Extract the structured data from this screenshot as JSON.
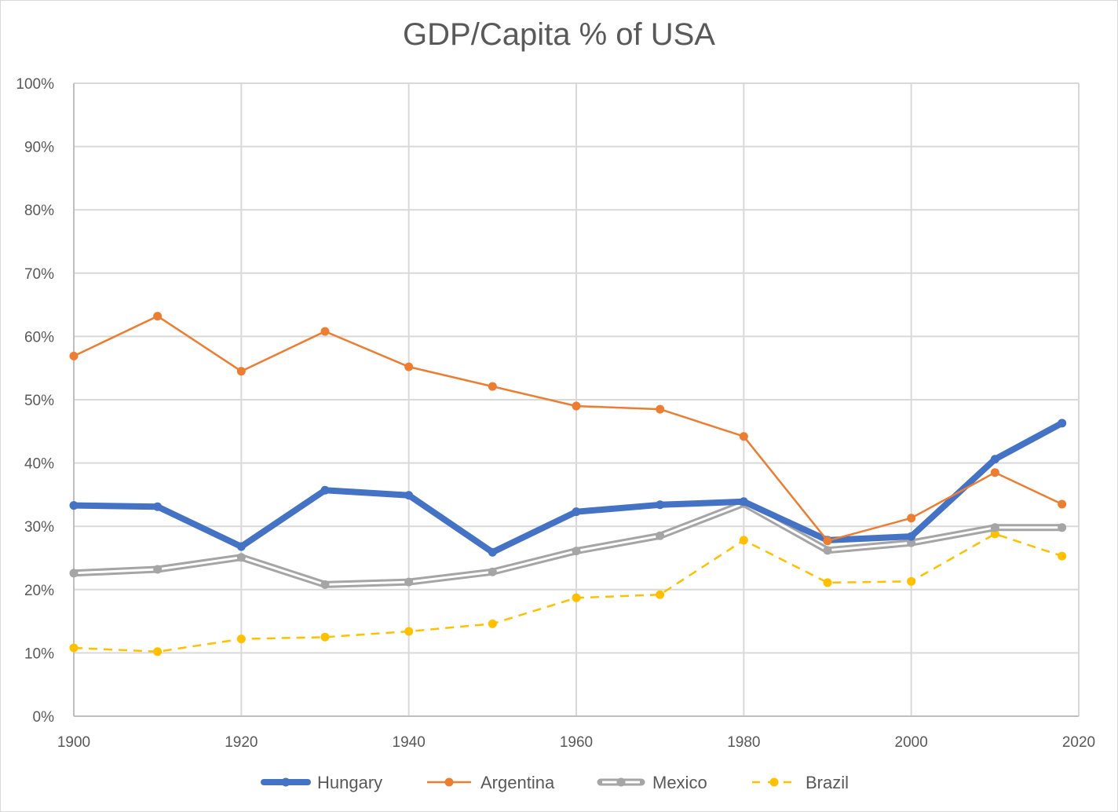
{
  "chart_data": {
    "type": "line",
    "title": "GDP/Capita % of USA",
    "xlabel": "",
    "ylabel": "",
    "xlim": [
      1900,
      2020
    ],
    "ylim": [
      0,
      100
    ],
    "x_ticks": [
      "1900",
      "1920",
      "1940",
      "1960",
      "1980",
      "2000",
      "2020"
    ],
    "x_tick_values": [
      1900,
      1920,
      1940,
      1960,
      1980,
      2000,
      2020
    ],
    "y_ticks": [
      "0%",
      "10%",
      "20%",
      "30%",
      "40%",
      "50%",
      "60%",
      "70%",
      "80%",
      "90%",
      "100%"
    ],
    "y_tick_values": [
      0,
      10,
      20,
      30,
      40,
      50,
      60,
      70,
      80,
      90,
      100
    ],
    "grid": "both",
    "legend_position": "bottom",
    "x": [
      1900,
      1910,
      1920,
      1930,
      1940,
      1950,
      1960,
      1970,
      1980,
      1990,
      2000,
      2010,
      2018
    ],
    "series": [
      {
        "name": "Hungary",
        "color": "#4472C4",
        "style": "thick-solid",
        "values": [
          33.3,
          33.1,
          26.8,
          35.7,
          34.9,
          25.9,
          32.3,
          33.4,
          33.9,
          27.8,
          28.4,
          40.6,
          46.3
        ]
      },
      {
        "name": "Argentina",
        "color": "#ED7D31",
        "style": "solid",
        "values": [
          56.9,
          63.2,
          54.5,
          60.8,
          55.2,
          52.1,
          49.0,
          48.5,
          44.2,
          27.7,
          31.3,
          38.5,
          33.5
        ]
      },
      {
        "name": "Mexico",
        "color": "#A5A5A5",
        "style": "double",
        "values": [
          22.6,
          23.2,
          25.1,
          20.8,
          21.2,
          22.8,
          26.1,
          28.5,
          33.6,
          26.2,
          27.4,
          29.8,
          29.8
        ]
      },
      {
        "name": "Brazil",
        "color": "#FFC000",
        "style": "dashed",
        "values": [
          10.8,
          10.2,
          12.2,
          12.5,
          13.4,
          14.6,
          18.7,
          19.2,
          27.8,
          21.1,
          21.3,
          28.8,
          25.3
        ]
      }
    ]
  }
}
